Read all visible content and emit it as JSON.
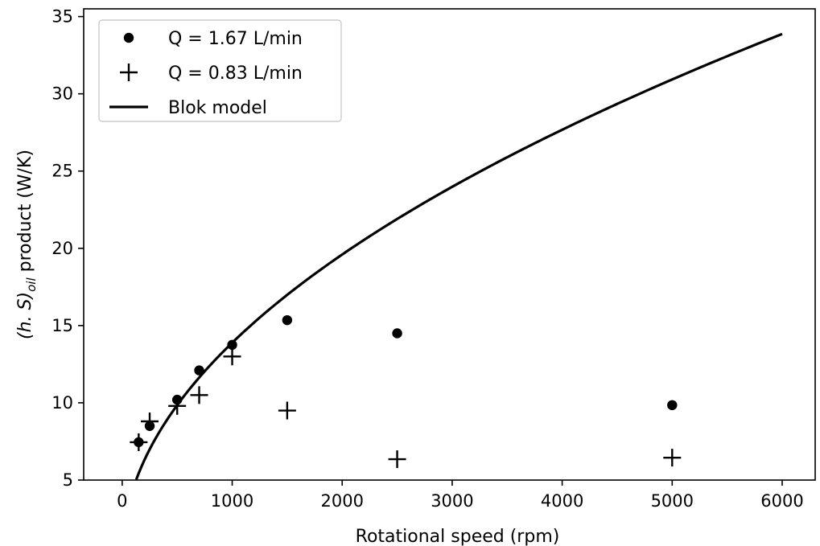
{
  "chart_data": {
    "type": "scatter",
    "xlabel": "Rotational speed (rpm)",
    "ylabel_parts": [
      "(h. S)",
      "oil",
      " product (W/K)"
    ],
    "xlim": [
      -350,
      6300
    ],
    "ylim": [
      5,
      35.5
    ],
    "x_ticks": [
      0,
      1000,
      2000,
      3000,
      4000,
      5000,
      6000
    ],
    "y_ticks": [
      5,
      10,
      15,
      20,
      25,
      30,
      35
    ],
    "grid": false,
    "legend_position": "upper-left",
    "series": [
      {
        "name": "Q = 1.67 L/min",
        "marker": "circle",
        "color": "#000000",
        "x": [
          150,
          250,
          500,
          700,
          1000,
          1500,
          2500,
          5000
        ],
        "y": [
          7.45,
          8.5,
          10.2,
          12.1,
          13.75,
          15.35,
          14.5,
          9.85
        ]
      },
      {
        "name": "Q = 0.83 L/min",
        "marker": "plus",
        "color": "#000000",
        "x": [
          150,
          250,
          500,
          700,
          1000,
          1500,
          2500,
          5000
        ],
        "y": [
          7.45,
          8.8,
          9.8,
          10.5,
          13.0,
          9.5,
          6.35,
          6.45
        ]
      },
      {
        "name": "Blok model",
        "marker": "line",
        "color": "#000000",
        "model": {
          "a": 0.436,
          "exponent": 0.5,
          "b": 0.1
        },
        "x_range": [
          128,
          6000
        ]
      }
    ]
  }
}
